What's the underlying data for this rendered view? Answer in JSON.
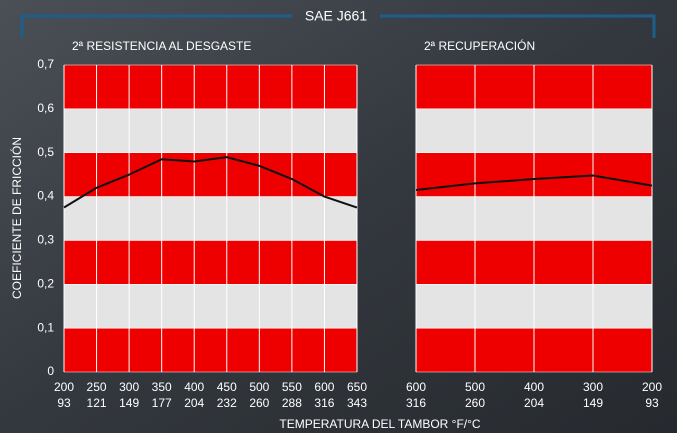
{
  "header": {
    "title": "SAE J661"
  },
  "axis_titles": {
    "y": "COEFICIENTE DE FRICCIÓN",
    "x": "TEMPERATURA DEL TAMBOR °F/°C"
  },
  "chart_data": [
    {
      "type": "line",
      "title": "2ª RESISTENCIA AL DESGASTE",
      "x": [
        200,
        250,
        300,
        350,
        400,
        450,
        500,
        550,
        600,
        650
      ],
      "values": [
        0.375,
        0.42,
        0.45,
        0.485,
        0.48,
        0.49,
        0.47,
        0.44,
        0.4,
        0.375
      ],
      "color": "#111111",
      "xlim": [
        200,
        650
      ],
      "xticks": [
        200,
        250,
        300,
        350,
        400,
        450,
        500,
        550,
        600,
        650
      ],
      "xticks_celsius": [
        93,
        121,
        149,
        177,
        204,
        232,
        260,
        288,
        316,
        343
      ],
      "ylim": [
        0,
        0.7
      ],
      "yticks": [
        0,
        {
          "value": 0.1,
          "label": "0,1"
        },
        {
          "value": 0.2,
          "label": "0,2"
        },
        {
          "value": 0.3,
          "label": "0,3"
        },
        {
          "value": 0.4,
          "label": "0,4"
        },
        {
          "value": 0.5,
          "label": "0,5"
        },
        {
          "value": 0.6,
          "label": "0,6"
        },
        {
          "value": 0.7,
          "label": "0,7"
        }
      ],
      "band_colors": [
        "#ee0000",
        "#e4e4e4"
      ],
      "grid": true
    },
    {
      "type": "line",
      "title": "2ª RECUPERACIÓN",
      "x": [
        600,
        500,
        400,
        300,
        200
      ],
      "values": [
        0.415,
        0.43,
        0.44,
        0.448,
        0.425
      ],
      "color": "#111111",
      "xlim": [
        600,
        200
      ],
      "xticks": [
        600,
        500,
        400,
        300,
        200
      ],
      "xticks_celsius": [
        316,
        260,
        204,
        149,
        93
      ],
      "ylim": [
        0,
        0.7
      ],
      "yticks": [
        0,
        0.1,
        0.2,
        0.3,
        0.4,
        0.5,
        0.6,
        0.7
      ],
      "band_colors": [
        "#ee0000",
        "#e4e4e4"
      ],
      "grid": true
    }
  ]
}
